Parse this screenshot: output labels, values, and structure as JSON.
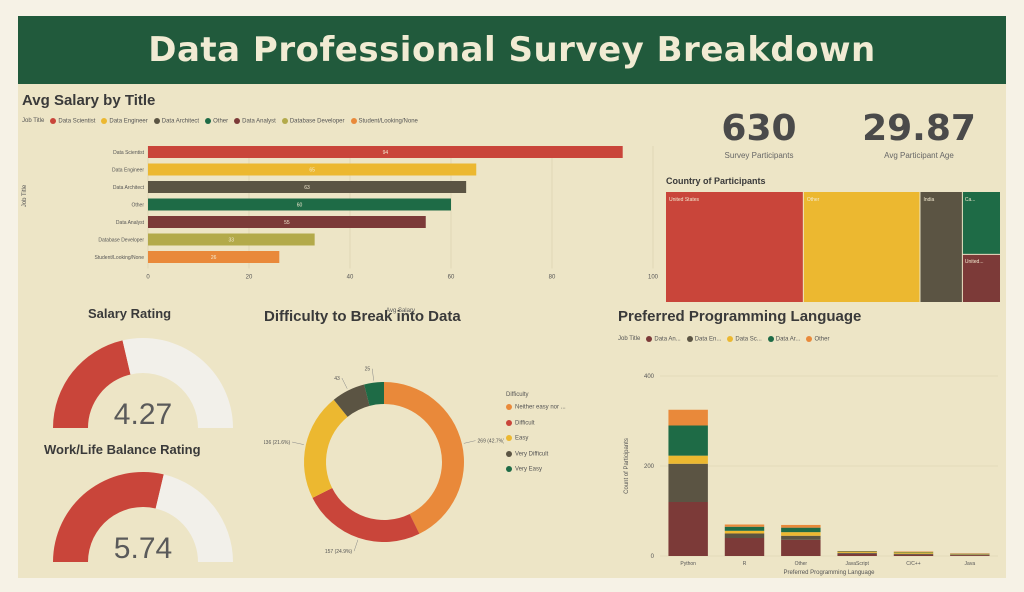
{
  "title": "Data Professional Survey Breakdown",
  "colors": {
    "red": "#c9453a",
    "yellow": "#ecb830",
    "brown": "#5b5443",
    "green": "#1e6b46",
    "maroon": "#7c3a38",
    "olive": "#b3aa4a",
    "orange": "#e9893a",
    "header": "#215a3c",
    "bg": "#ede5c6"
  },
  "kpis": [
    {
      "value": "630",
      "label": "Survey Participants"
    },
    {
      "value": "29.87",
      "label": "Avg Participant Age"
    }
  ],
  "avg_salary": {
    "title": "Avg Salary by Title",
    "chart_data": {
      "type": "bar",
      "orientation": "horizontal",
      "title": "Avg Salary by Title",
      "xlabel": "Avg Salary",
      "ylabel": "Job Title",
      "legend_title": "Job Title",
      "categories": [
        "Data Scientist",
        "Data Engineer",
        "Data Architect",
        "Other",
        "Data Analyst",
        "Database Developer",
        "Student/Looking/None"
      ],
      "values": [
        94,
        65,
        63,
        60,
        55,
        33,
        26
      ],
      "value_labels": [
        "94",
        "65",
        "63",
        "60",
        "55",
        "33",
        "26"
      ],
      "xlim": [
        0,
        100
      ],
      "xticks": [
        "0",
        "20",
        "40",
        "60",
        "80",
        "100"
      ],
      "colors": [
        "#c9453a",
        "#ecb830",
        "#5b5443",
        "#1e6b46",
        "#7c3a38",
        "#b3aa4a",
        "#e9893a"
      ]
    }
  },
  "country": {
    "title": "Country of Participants",
    "chart_data": {
      "type": "treemap",
      "title": "Country of Participants",
      "categories": [
        "United States",
        "Other",
        "India",
        "Canada",
        "United Kingdom"
      ],
      "labels": [
        "United States",
        "Other",
        "India",
        "Ca...",
        "United..."
      ],
      "values": [
        260,
        220,
        80,
        40,
        30
      ],
      "colors": [
        "#c9453a",
        "#ecb830",
        "#5b5443",
        "#1e6b46",
        "#7c3a38"
      ]
    }
  },
  "salary_rating": {
    "title": "Salary Rating",
    "chart_data": {
      "type": "gauge",
      "value": 4.27,
      "value_label": "4.27",
      "min": 0,
      "max": 10
    }
  },
  "work_life": {
    "title": "Work/Life Balance Rating",
    "chart_data": {
      "type": "gauge",
      "value": 5.74,
      "value_label": "5.74",
      "min": 0,
      "max": 10
    }
  },
  "difficulty": {
    "title": "Difficulty to Break into Data",
    "legend_title": "Difficulty",
    "chart_data": {
      "type": "pie",
      "donut": true,
      "title": "Difficulty to Break into Data",
      "categories": [
        "Neither easy nor difficult",
        "Difficult",
        "Easy",
        "Very Difficult",
        "Very Easy"
      ],
      "legend_labels": [
        "Neither easy nor ...",
        "Difficult",
        "Easy",
        "Very Difficult",
        "Very Easy"
      ],
      "values": [
        42.7,
        24.9,
        21.6,
        6.8,
        4.0
      ],
      "slice_labels": [
        "269 (42.7%)",
        "157 (24.9%)",
        "136 (21.6%)",
        "43",
        "25"
      ],
      "colors": [
        "#e9893a",
        "#c9453a",
        "#ecb830",
        "#5b5443",
        "#1e6b46"
      ]
    }
  },
  "programming": {
    "title": "Preferred Programming Language",
    "chart_data": {
      "type": "bar",
      "stacked": true,
      "title": "Preferred Programming Language",
      "xlabel": "Preferred Programming Language",
      "ylabel": "Count of Participants",
      "legend_title": "Job Title",
      "legend_labels": [
        "Data An...",
        "Data En...",
        "Data Sc...",
        "Data Ar...",
        "Other"
      ],
      "categories": [
        "Python",
        "R",
        "Other",
        "JavaScript",
        "C/C++",
        "Java"
      ],
      "ylim": [
        0,
        400
      ],
      "yticks": [
        "0",
        "200",
        "400"
      ],
      "series": [
        {
          "name": "Data Analyst",
          "values": [
            120,
            40,
            36,
            5,
            3,
            2
          ],
          "color": "#7c3a38"
        },
        {
          "name": "Data Architect",
          "values": [
            85,
            10,
            9,
            2,
            2,
            1
          ],
          "color": "#5b5443"
        },
        {
          "name": "Data Engineer",
          "values": [
            18,
            6,
            8,
            2,
            3,
            1
          ],
          "color": "#ecb830"
        },
        {
          "name": "Data Scientist",
          "values": [
            67,
            9,
            10,
            1,
            1,
            1
          ],
          "color": "#1e6b46"
        },
        {
          "name": "Other",
          "values": [
            35,
            5,
            6,
            1,
            1,
            1
          ],
          "color": "#e9893a"
        }
      ]
    }
  }
}
